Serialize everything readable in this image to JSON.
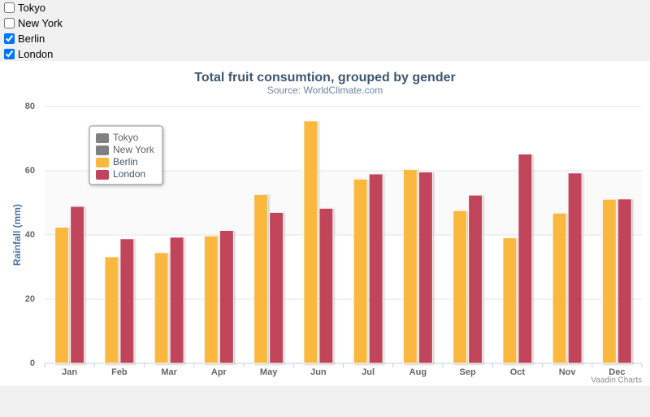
{
  "controls": [
    {
      "label": "Tokyo",
      "checked": false
    },
    {
      "label": "New York",
      "checked": false
    },
    {
      "label": "Berlin",
      "checked": true
    },
    {
      "label": "London",
      "checked": true
    }
  ],
  "chart_data": {
    "type": "bar",
    "title": "Total fruit consumtion, grouped by gender",
    "subtitle": "Source: WorldClimate.com",
    "y_label": "Rainfall (mm)",
    "credits": "Vaadin Charts",
    "categories": [
      "Jan",
      "Feb",
      "Mar",
      "Apr",
      "May",
      "Jun",
      "Jul",
      "Aug",
      "Sep",
      "Oct",
      "Nov",
      "Dec"
    ],
    "series": [
      {
        "name": "Tokyo",
        "visible": false
      },
      {
        "name": "New York",
        "visible": false
      },
      {
        "name": "Berlin",
        "visible": true,
        "color": "#fbb83f",
        "values": [
          42.4,
          33.2,
          34.5,
          39.7,
          52.6,
          75.5,
          57.4,
          60.4,
          47.6,
          39.1,
          46.8,
          51.1
        ]
      },
      {
        "name": "London",
        "visible": true,
        "color": "#c1455a",
        "values": [
          48.9,
          38.8,
          39.3,
          41.4,
          47.0,
          48.3,
          59.0,
          59.6,
          52.4,
          65.2,
          59.3,
          51.2
        ]
      }
    ],
    "ylim": [
      0,
      80
    ],
    "yticks": [
      0,
      20,
      40,
      60,
      80
    ],
    "grid": true
  }
}
